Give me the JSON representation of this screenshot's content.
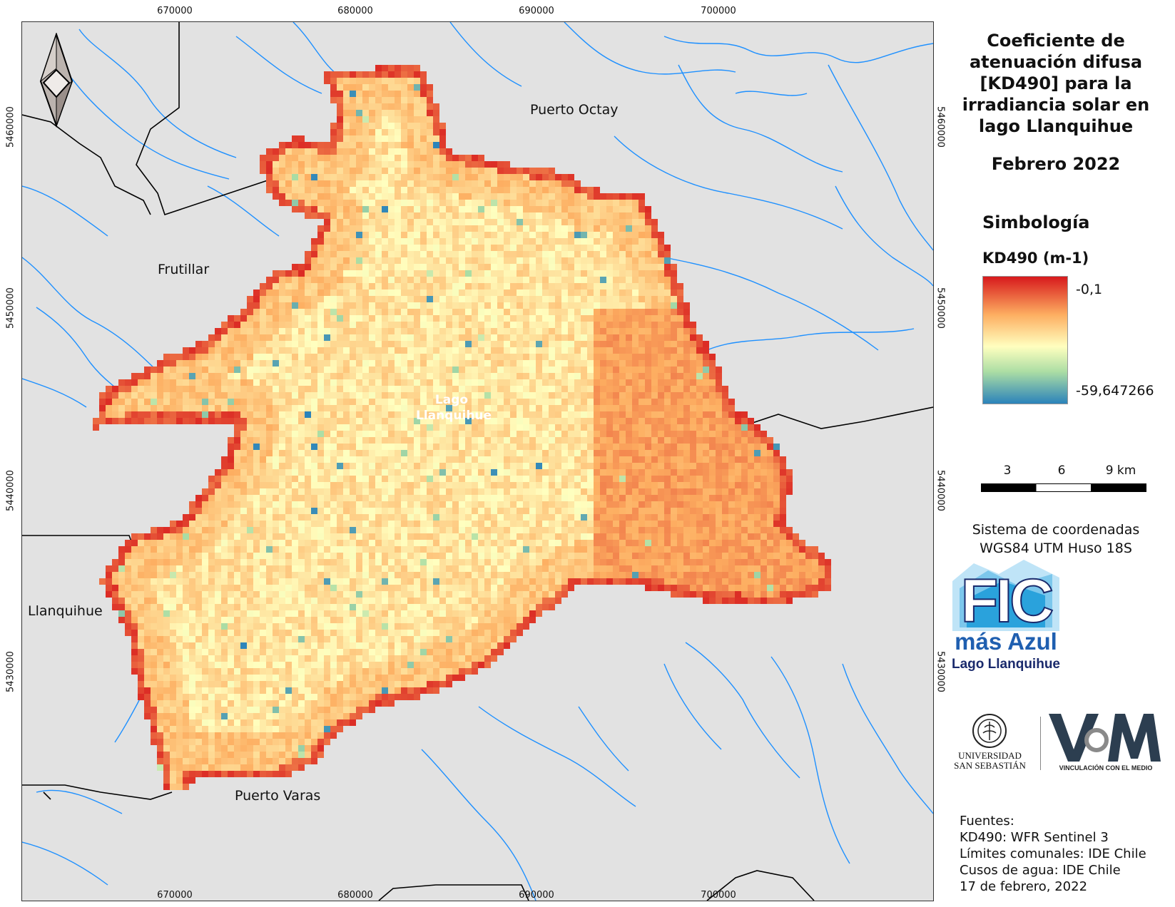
{
  "map": {
    "x_ticks": [
      "670000",
      "680000",
      "690000",
      "700000"
    ],
    "y_ticks": [
      "5460000",
      "5450000",
      "5440000",
      "5430000"
    ],
    "places": {
      "puerto_octay": "Puerto Octay",
      "frutillar": "Frutillar",
      "llanquihue": "Llanquihue",
      "puerto_varas": "Puerto Varas",
      "lago_line1": "Lago",
      "lago_line2": "Llanquihue"
    },
    "north_arrow_icon": "north-arrow-icon",
    "colors": {
      "land": "#e2e2e2",
      "rivers": "#1e90ff",
      "boundaries": "#000000",
      "ramp_high": "#d7191c",
      "ramp_mid": "#ffffbf",
      "ramp_low": "#2b83ba"
    }
  },
  "panel": {
    "title_lines": [
      "Coeficiente de",
      "atenuación difusa",
      "[KD490] para la",
      "irradiancia solar en",
      "lago Llanquihue"
    ],
    "subtitle": "Febrero 2022",
    "legend_heading": "Simbología",
    "legend_variable": "KD490 (m-1)",
    "legend_max": "-0,1",
    "legend_min": "-59,647266",
    "scale_labels": [
      "3",
      "6",
      "9 km"
    ],
    "crs_line1": "Sistema de coordenadas",
    "crs_line2": "WGS84 UTM Huso 18S",
    "logo_fic_main": "FIC",
    "logo_fic_sub": "más Azul",
    "logo_fic_place": "Lago Llanquihue",
    "logo_uss_line1": "UNIVERSIDAD",
    "logo_uss_line2": "SAN SEBASTIÁN",
    "logo_vcm_text": "VINCULACIÓN CON EL MEDIO",
    "sources_heading": "Fuentes:",
    "sources": [
      "KD490: WFR Sentinel 3",
      "Límites comunales: IDE Chile",
      "Cusos de agua: IDE Chile",
      "17 de febrero, 2022"
    ]
  }
}
